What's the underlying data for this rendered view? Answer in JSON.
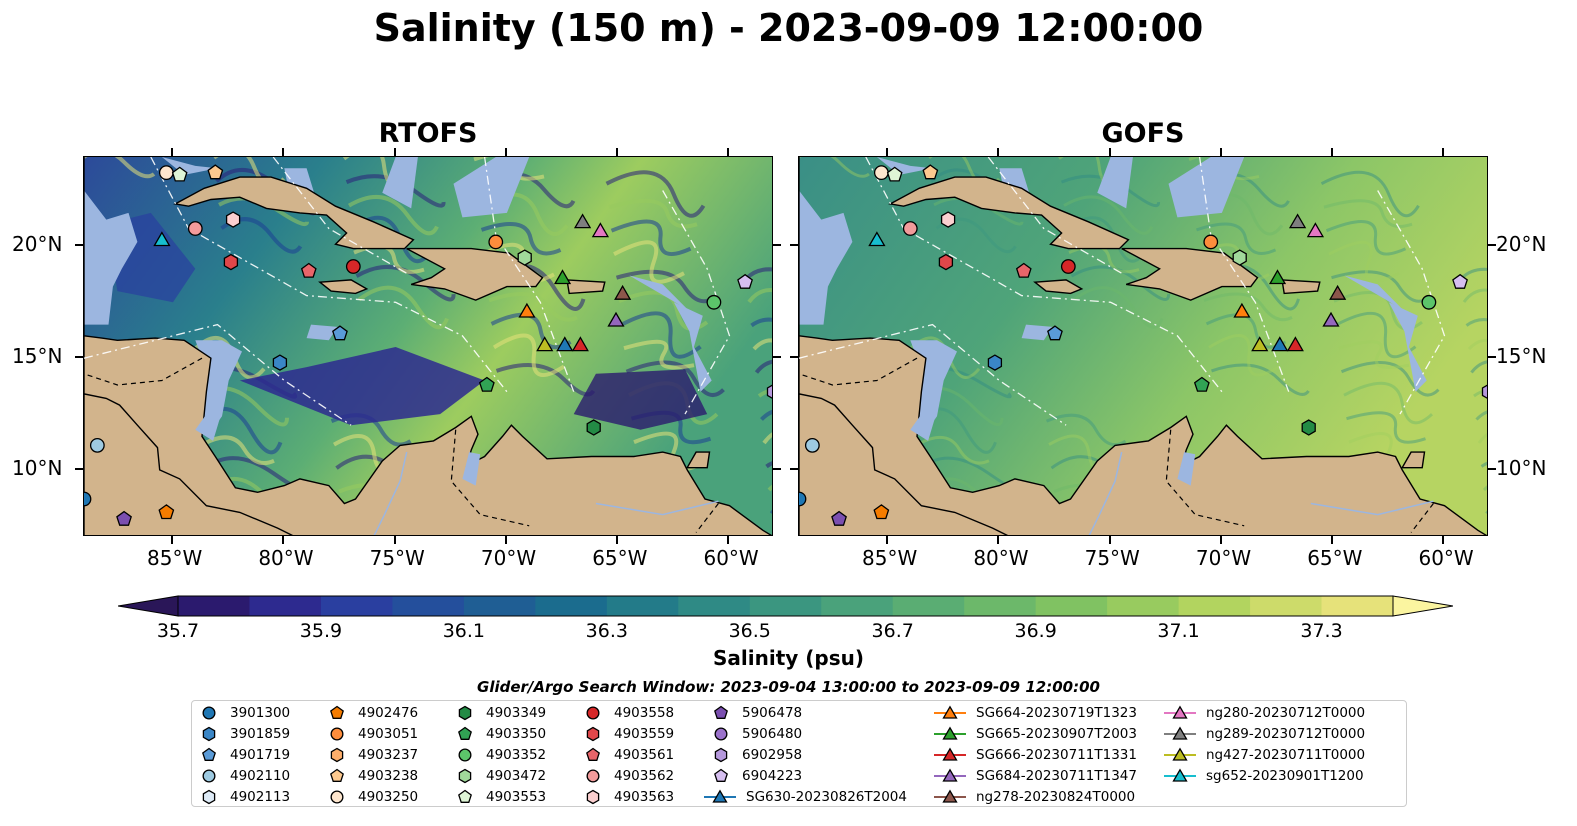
{
  "title": "Salinity (150 m) - 2023-09-09 12:00:00",
  "panels": [
    {
      "title": "RTOFS",
      "model": "rtofs"
    },
    {
      "title": "GOFS",
      "model": "gofs"
    }
  ],
  "x_ticks": [
    "85°W",
    "80°W",
    "75°W",
    "70°W",
    "65°W",
    "60°W"
  ],
  "y_ticks": [
    "20°N",
    "15°N",
    "10°N"
  ],
  "colorbar": {
    "label": "Salinity (psu)",
    "ticks": [
      "35.7",
      "35.9",
      "36.1",
      "36.3",
      "36.5",
      "36.7",
      "36.9",
      "37.1",
      "37.3"
    ],
    "colors": [
      "#2b1a6e",
      "#2d2a8f",
      "#2a3fa0",
      "#244f9c",
      "#1f5e94",
      "#1b6c8e",
      "#237b89",
      "#2f8a85",
      "#3b9680",
      "#4aa27b",
      "#5aad73",
      "#6cb86a",
      "#80c262",
      "#98cb5f",
      "#b2d45f",
      "#cddb6a",
      "#e6e27a"
    ],
    "under_color": "#2a1658",
    "over_color": "#fbf5a0"
  },
  "legend": {
    "title": "Glider/Argo Search Window: 2023-09-04 13:00:00 to 2023-09-09 12:00:00",
    "argo": [
      {
        "id": "3901300",
        "color": "#1f77b4",
        "marker": "circle"
      },
      {
        "id": "3901859",
        "color": "#3a86c6",
        "marker": "hexagon"
      },
      {
        "id": "4901719",
        "color": "#5a9bd8",
        "marker": "pentagon"
      },
      {
        "id": "4902110",
        "color": "#9ecae1",
        "marker": "circle"
      },
      {
        "id": "4902113",
        "color": "#deebf7",
        "marker": "hexagon"
      },
      {
        "id": "4902476",
        "color": "#f57c00",
        "marker": "pentagon"
      },
      {
        "id": "4903051",
        "color": "#fd8d3c",
        "marker": "circle"
      },
      {
        "id": "4903237",
        "color": "#fdae6b",
        "marker": "hexagon"
      },
      {
        "id": "4903238",
        "color": "#fdc98f",
        "marker": "pentagon"
      },
      {
        "id": "4903250",
        "color": "#fee6ce",
        "marker": "circle"
      },
      {
        "id": "4903349",
        "color": "#238b45",
        "marker": "hexagon"
      },
      {
        "id": "4903350",
        "color": "#31a354",
        "marker": "pentagon"
      },
      {
        "id": "4903352",
        "color": "#5cc46a",
        "marker": "circle"
      },
      {
        "id": "4903472",
        "color": "#a1d99b",
        "marker": "hexagon"
      },
      {
        "id": "4903553",
        "color": "#dff5d6",
        "marker": "pentagon"
      },
      {
        "id": "4903558",
        "color": "#d62728",
        "marker": "circle"
      },
      {
        "id": "4903559",
        "color": "#e0474a",
        "marker": "hexagon"
      },
      {
        "id": "4903561",
        "color": "#e8656a",
        "marker": "pentagon"
      },
      {
        "id": "4903562",
        "color": "#f29b9b",
        "marker": "circle"
      },
      {
        "id": "4903563",
        "color": "#fbd0d0",
        "marker": "hexagon"
      },
      {
        "id": "5906478",
        "color": "#7b4fb0",
        "marker": "pentagon"
      },
      {
        "id": "5906480",
        "color": "#9b72cb",
        "marker": "circle"
      },
      {
        "id": "6902958",
        "color": "#b598dc",
        "marker": "hexagon"
      },
      {
        "id": "6904223",
        "color": "#d6bff0",
        "marker": "pentagon"
      }
    ],
    "gliders": [
      {
        "id": "SG630-20230826T2004",
        "color": "#1f77b4"
      },
      {
        "id": "SG664-20230719T1323",
        "color": "#ff7f0e"
      },
      {
        "id": "SG665-20230907T2003",
        "color": "#2ca02c"
      },
      {
        "id": "SG666-20230711T1331",
        "color": "#d62728"
      },
      {
        "id": "SG684-20230711T1347",
        "color": "#9467bd"
      },
      {
        "id": "ng278-20230824T0000",
        "color": "#8c564b"
      },
      {
        "id": "ng280-20230712T0000",
        "color": "#e377c2"
      },
      {
        "id": "ng289-20230712T0000",
        "color": "#7f7f7f"
      },
      {
        "id": "ng427-20230711T0000",
        "color": "#bcbd22"
      },
      {
        "id": "sg652-20230901T1200",
        "color": "#17becf"
      }
    ]
  },
  "map_extent": {
    "lon": [
      -89,
      -58
    ],
    "lat": [
      7,
      24
    ]
  },
  "map_colors": {
    "land": "#d2b48c",
    "shallow": "#9cb6e0",
    "deep_rtofs": "#2e7d8c",
    "deep_gofs": "#3d9a7e"
  },
  "markers": [
    {
      "id": "3901300",
      "lon": -89.0,
      "lat": 8.7
    },
    {
      "id": "4902476",
      "lon": -85.3,
      "lat": 8.1
    },
    {
      "id": "5906478",
      "lon": -87.2,
      "lat": 7.8
    },
    {
      "id": "4902110",
      "lon": -88.4,
      "lat": 11.1
    },
    {
      "id": "3901859",
      "lon": -80.2,
      "lat": 14.8
    },
    {
      "id": "4901719",
      "lon": -77.5,
      "lat": 16.1
    },
    {
      "id": "4903250",
      "lon": -85.3,
      "lat": 23.3
    },
    {
      "id": "4903553",
      "lon": -84.7,
      "lat": 23.2
    },
    {
      "id": "4903238",
      "lon": -83.1,
      "lat": 23.3
    },
    {
      "id": "4903562",
      "lon": -84.0,
      "lat": 20.8
    },
    {
      "id": "4903563",
      "lon": -82.3,
      "lat": 21.2
    },
    {
      "id": "4903559",
      "lon": -82.4,
      "lat": 19.3
    },
    {
      "id": "4903561",
      "lon": -78.9,
      "lat": 18.9
    },
    {
      "id": "4903558",
      "lon": -76.9,
      "lat": 19.1
    },
    {
      "id": "4903051",
      "lon": -70.5,
      "lat": 20.2
    },
    {
      "id": "4903472",
      "lon": -69.2,
      "lat": 19.5
    },
    {
      "id": "4903350",
      "lon": -70.9,
      "lat": 13.8
    },
    {
      "id": "4903349",
      "lon": -66.1,
      "lat": 11.9
    },
    {
      "id": "4903352",
      "lon": -60.7,
      "lat": 17.5
    },
    {
      "id": "6904223",
      "lon": -59.3,
      "lat": 18.4
    },
    {
      "id": "6902958",
      "lon": -58.0,
      "lat": 13.5
    },
    {
      "id": "sg652-20230901T1200",
      "lon": -85.5,
      "lat": 20.3
    },
    {
      "id": "SG664-20230719T1323",
      "lon": -69.1,
      "lat": 17.1
    },
    {
      "id": "SG665-20230907T2003",
      "lon": -67.5,
      "lat": 18.6
    },
    {
      "id": "ng289-20230712T0000",
      "lon": -66.6,
      "lat": 21.1
    },
    {
      "id": "ng280-20230712T0000",
      "lon": -65.8,
      "lat": 20.7
    },
    {
      "id": "ng278-20230824T0000",
      "lon": -64.8,
      "lat": 17.9
    },
    {
      "id": "SG684-20230711T1347",
      "lon": -65.1,
      "lat": 16.7
    },
    {
      "id": "ng427-20230711T0000",
      "lon": -68.3,
      "lat": 15.6
    },
    {
      "id": "SG630-20230826T2004",
      "lon": -67.4,
      "lat": 15.6
    },
    {
      "id": "SG666-20230711T1331",
      "lon": -66.7,
      "lat": 15.6
    }
  ]
}
